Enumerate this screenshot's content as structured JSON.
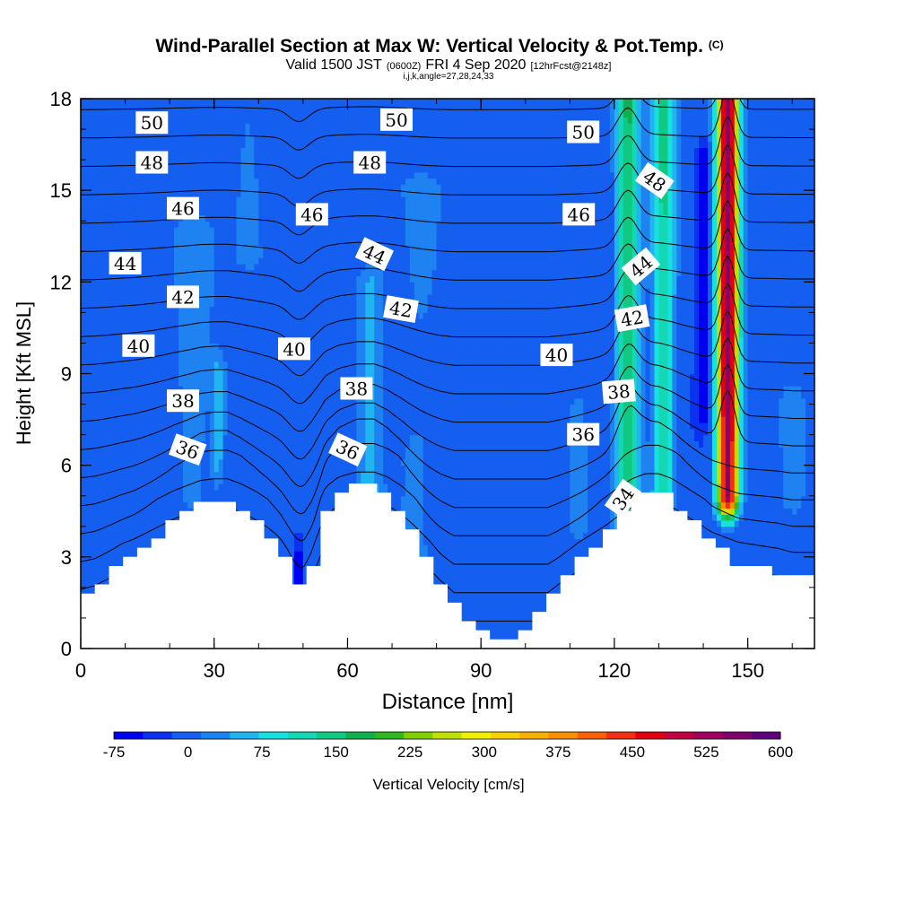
{
  "chart_data": {
    "type": "heatmap",
    "title": "Wind-Parallel Section at Max W: Vertical Velocity & Pot.Temp.",
    "title_mark": "(C)",
    "subtitle": {
      "valid_prefix": "Valid 1500 JST",
      "utc": "(0600Z)",
      "date": "FRI 4 Sep 2020",
      "forecast": "[12hrFcst@2148z]"
    },
    "grid_info": "i,j,k,angle=27,28,24,33",
    "xlabel": "Distance [nm]",
    "ylabel": "Height [Kft MSL]",
    "xlim": [
      0,
      165
    ],
    "ylim": [
      0,
      18
    ],
    "x_ticks": [
      "0",
      "30",
      "60",
      "90",
      "120",
      "150"
    ],
    "y_ticks": [
      "0",
      "3",
      "6",
      "9",
      "12",
      "15",
      "18"
    ],
    "colorbar": {
      "label": "Vertical Velocity [cm/s]",
      "tick_labels": [
        "-75",
        "0",
        "75",
        "150",
        "225",
        "300",
        "375",
        "450",
        "525",
        "600"
      ],
      "min": -75,
      "max": 600,
      "colors": [
        "#0000f0",
        "#0a32f0",
        "#145ff0",
        "#1e82f0",
        "#20b4f0",
        "#18e0e0",
        "#14d8b4",
        "#10c880",
        "#10b050",
        "#30b820",
        "#80d000",
        "#c0e000",
        "#f0f000",
        "#f8d000",
        "#f8b000",
        "#f89000",
        "#f86000",
        "#f03010",
        "#e00010",
        "#c00040",
        "#a00060",
        "#800070",
        "#600080"
      ]
    },
    "terrain": [
      [
        0,
        1.7
      ],
      [
        3,
        1.9
      ],
      [
        6,
        2.3
      ],
      [
        9,
        2.7
      ],
      [
        12,
        3.0
      ],
      [
        15,
        3.4
      ],
      [
        18,
        3.8
      ],
      [
        21,
        4.2
      ],
      [
        24,
        4.5
      ],
      [
        27,
        4.8
      ],
      [
        30,
        4.9
      ],
      [
        33,
        4.9
      ],
      [
        36,
        4.6
      ],
      [
        39,
        4.2
      ],
      [
        42,
        3.7
      ],
      [
        45,
        3.1
      ],
      [
        48,
        2.4
      ],
      [
        50,
        2.0
      ],
      [
        52,
        2.6
      ],
      [
        55,
        4.4
      ],
      [
        58,
        5.0
      ],
      [
        62,
        5.3
      ],
      [
        66,
        5.3
      ],
      [
        69,
        5.0
      ],
      [
        72,
        4.5
      ],
      [
        75,
        3.8
      ],
      [
        78,
        3.0
      ],
      [
        81,
        2.2
      ],
      [
        84,
        1.5
      ],
      [
        87,
        0.9
      ],
      [
        90,
        0.6
      ],
      [
        93,
        0.3
      ],
      [
        97,
        0.3
      ],
      [
        100,
        0.6
      ],
      [
        103,
        1.1
      ],
      [
        106,
        1.7
      ],
      [
        109,
        2.3
      ],
      [
        112,
        2.8
      ],
      [
        115,
        3.3
      ],
      [
        118,
        3.8
      ],
      [
        121,
        4.4
      ],
      [
        124,
        4.9
      ],
      [
        127,
        5.2
      ],
      [
        130,
        5.2
      ],
      [
        133,
        4.9
      ],
      [
        136,
        4.4
      ],
      [
        139,
        3.9
      ],
      [
        142,
        3.4
      ],
      [
        145,
        3.1
      ],
      [
        148,
        2.8
      ],
      [
        151,
        2.7
      ],
      [
        154,
        2.6
      ],
      [
        157,
        2.5
      ],
      [
        160,
        2.3
      ],
      [
        165,
        2.3
      ]
    ],
    "w_features": [
      {
        "cx": 123,
        "sx": 2.5,
        "y0": 3.2,
        "y1": 18,
        "w": 170
      },
      {
        "cx": 131,
        "sx": 2.5,
        "y0": 4.5,
        "y1": 18,
        "w": 140
      },
      {
        "cx": 145.5,
        "sx": 2.3,
        "y0": 5,
        "y1": 18,
        "w": 560
      },
      {
        "cx": 140,
        "sx": 1.5,
        "y0": 8,
        "y1": 16,
        "w": -70
      },
      {
        "cx": 25,
        "sx": 5,
        "y0": 5,
        "y1": 13.5,
        "w": 35
      },
      {
        "cx": 31,
        "sx": 1.5,
        "y0": 6,
        "y1": 9,
        "w": 55
      },
      {
        "cx": 65,
        "sx": 3,
        "y0": 5,
        "y1": 12,
        "w": 60
      },
      {
        "cx": 75,
        "sx": 5,
        "y0": 2,
        "y1": 6,
        "w": 30
      },
      {
        "cx": 38,
        "sx": 4,
        "y0": 13,
        "y1": 18,
        "w": 25
      },
      {
        "cx": 76,
        "sx": 6,
        "y0": 7,
        "y1": 15,
        "w": 25
      },
      {
        "cx": 112,
        "sx": 3,
        "y0": 4,
        "y1": 8,
        "w": 20
      },
      {
        "cx": 160,
        "sx": 3,
        "y0": 5,
        "y1": 8,
        "w": 30
      },
      {
        "cx": 49,
        "sx": 0.8,
        "y0": 1.9,
        "y1": 2.9,
        "w": -75
      }
    ],
    "theta_levels": [
      32,
      33,
      34,
      35,
      36,
      37,
      38,
      39,
      40,
      41,
      42,
      43,
      44,
      45,
      46,
      47,
      48,
      49,
      50,
      51
    ],
    "theta_labels": [
      {
        "text": "50",
        "x": 16,
        "y": 17.2,
        "angle": 0
      },
      {
        "text": "48",
        "x": 16,
        "y": 15.9,
        "angle": 0
      },
      {
        "text": "46",
        "x": 23,
        "y": 14.4,
        "angle": 0
      },
      {
        "text": "44",
        "x": 10,
        "y": 12.6,
        "angle": 0
      },
      {
        "text": "42",
        "x": 23,
        "y": 11.5,
        "angle": 0
      },
      {
        "text": "40",
        "x": 13,
        "y": 9.9,
        "angle": 0
      },
      {
        "text": "38",
        "x": 23,
        "y": 8.1,
        "angle": 0
      },
      {
        "text": "36",
        "x": 24,
        "y": 6.5,
        "angle": 20
      },
      {
        "text": "50",
        "x": 71,
        "y": 17.3,
        "angle": 0
      },
      {
        "text": "48",
        "x": 65,
        "y": 15.9,
        "angle": 0
      },
      {
        "text": "46",
        "x": 52,
        "y": 14.2,
        "angle": 0
      },
      {
        "text": "44",
        "x": 66,
        "y": 12.9,
        "angle": 25
      },
      {
        "text": "42",
        "x": 72,
        "y": 11.1,
        "angle": 10
      },
      {
        "text": "40",
        "x": 48,
        "y": 9.8,
        "angle": 0
      },
      {
        "text": "38",
        "x": 62,
        "y": 8.5,
        "angle": 0
      },
      {
        "text": "36",
        "x": 60,
        "y": 6.5,
        "angle": 25
      },
      {
        "text": "50",
        "x": 113,
        "y": 16.9,
        "angle": 0
      },
      {
        "text": "48",
        "x": 129,
        "y": 15.3,
        "angle": 35
      },
      {
        "text": "46",
        "x": 112,
        "y": 14.2,
        "angle": 0
      },
      {
        "text": "44",
        "x": 126,
        "y": 12.5,
        "angle": -40
      },
      {
        "text": "42",
        "x": 124,
        "y": 10.8,
        "angle": -10
      },
      {
        "text": "40",
        "x": 107,
        "y": 9.6,
        "angle": 0
      },
      {
        "text": "38",
        "x": 121,
        "y": 8.4,
        "angle": -5
      },
      {
        "text": "36",
        "x": 113,
        "y": 7.0,
        "angle": 0
      },
      {
        "text": "34",
        "x": 122,
        "y": 4.9,
        "angle": -55
      }
    ]
  }
}
